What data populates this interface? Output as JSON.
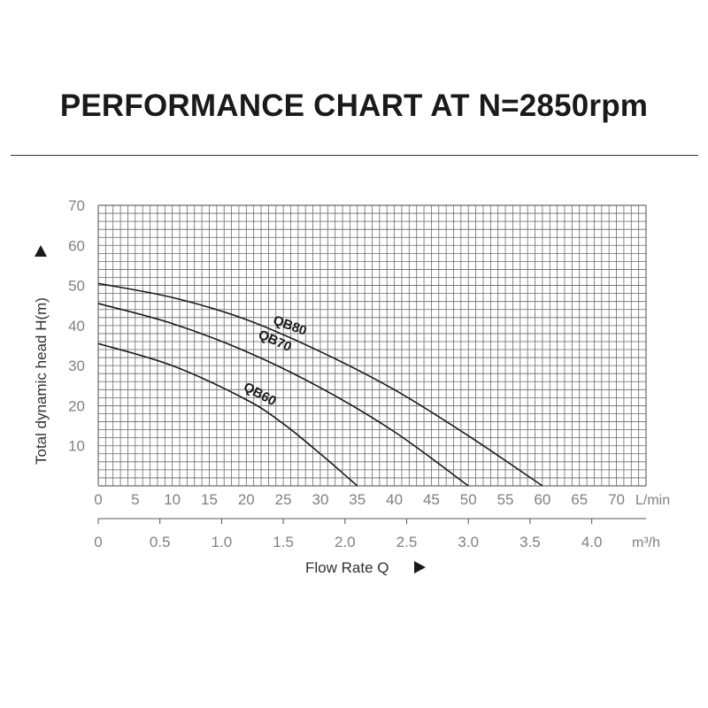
{
  "chart_data": {
    "type": "line",
    "title": "PERFORMANCE CHART AT N=2850rpm",
    "ylabel": "Total dynamic head H(m)",
    "xlabel": "Flow Rate Q",
    "x_unit": "L/min",
    "x2_unit": "m³/h",
    "ylim": [
      0,
      70
    ],
    "xlim": [
      0,
      74
    ],
    "x_ticks": [
      "0",
      "5",
      "10",
      "15",
      "20",
      "25",
      "30",
      "35",
      "40",
      "45",
      "50",
      "55",
      "60",
      "65",
      "70"
    ],
    "x2_ticks": [
      "0",
      "0.5",
      "1.0",
      "1.5",
      "2.0",
      "2.5",
      "3.0",
      "3.5",
      "4.0"
    ],
    "y_ticks": [
      "10",
      "20",
      "30",
      "40",
      "50",
      "60",
      "70"
    ],
    "grid": true,
    "series": [
      {
        "name": "QB80",
        "x": [
          0,
          10,
          20,
          30,
          40,
          50,
          60
        ],
        "y": [
          50.5,
          47,
          41.5,
          33.5,
          24,
          12.5,
          0
        ]
      },
      {
        "name": "QB70",
        "x": [
          0,
          10,
          20,
          30,
          40,
          50
        ],
        "y": [
          45.5,
          40.5,
          33.5,
          24.5,
          13.5,
          0
        ]
      },
      {
        "name": "QB60",
        "x": [
          0,
          10,
          20,
          25,
          30,
          35
        ],
        "y": [
          35.5,
          30,
          21.5,
          15.5,
          8,
          0
        ]
      }
    ],
    "colors": {
      "curve": "#1a1a1a",
      "grid": "#6a6a6a",
      "tick_text": "#808080"
    }
  }
}
